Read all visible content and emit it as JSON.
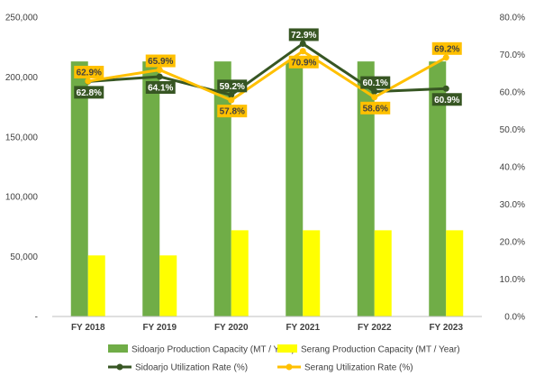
{
  "chart_data": {
    "type": "bar",
    "categories": [
      "FY 2018",
      "FY 2019",
      "FY 2020",
      "FY 2021",
      "FY 2022",
      "FY 2023"
    ],
    "bar_series": [
      {
        "name": "Sidoarjo Production Capacity (MT / Year)",
        "color": "#70ad47",
        "values": [
          213000,
          213000,
          213000,
          213000,
          213000,
          213000
        ]
      },
      {
        "name": "Serang Production Capacity (MT / Year)",
        "color": "#ffff00",
        "values": [
          51000,
          51000,
          72000,
          72000,
          72000,
          72000
        ]
      }
    ],
    "line_series": [
      {
        "name": "Sidoarjo Utilization Rate (%)",
        "color": "#375623",
        "label_bg": "#375623",
        "label_fg": "#ffffff",
        "values": [
          62.8,
          64.1,
          59.2,
          72.9,
          60.1,
          60.9
        ],
        "labels": [
          "62.8%",
          "64.1%",
          "59.2%",
          "72.9%",
          "60.1%",
          "60.9%"
        ]
      },
      {
        "name": "Serang Utilization Rate (%)",
        "color": "#ffc000",
        "label_bg": "#ffc000",
        "label_fg": "#404040",
        "values": [
          62.9,
          65.9,
          57.8,
          70.9,
          58.6,
          69.2
        ],
        "labels": [
          "62.9%",
          "65.9%",
          "57.8%",
          "70.9%",
          "58.6%",
          "69.2%"
        ]
      }
    ],
    "y_left": {
      "min": 0,
      "max": 250000,
      "ticks": [
        "-",
        "50,000",
        "100,000",
        "150,000",
        "200,000",
        "250,000"
      ]
    },
    "y_right": {
      "min": 0,
      "max": 80,
      "ticks": [
        "0.0%",
        "10.0%",
        "20.0%",
        "30.0%",
        "40.0%",
        "50.0%",
        "60.0%",
        "70.0%",
        "80.0%"
      ]
    },
    "grid": false,
    "legend": "bottom"
  }
}
